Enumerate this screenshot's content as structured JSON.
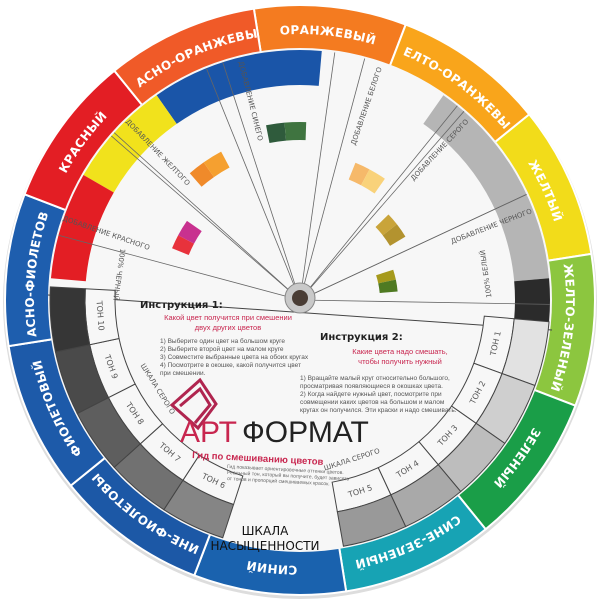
{
  "ring": [
    {
      "label": "ОРАНЖЕВЫЙ",
      "color": "#f47b20"
    },
    {
      "label": "ЖЕЛТО-ОРАНЖЕВЫЙ",
      "color": "#f9a51b"
    },
    {
      "label": "ЖЕЛТЫЙ",
      "color": "#f2dc1a"
    },
    {
      "label": "ЖЕЛТО-ЗЕЛЕНЫЙ",
      "color": "#8cc63f"
    },
    {
      "label": "ЗЕЛЕНЫЙ",
      "color": "#1a9e48"
    },
    {
      "label": "СИНЕ-ЗЕЛЕНЫЙ",
      "color": "#17a3b4"
    },
    {
      "label": "СИНИЙ",
      "color": "#1a62ae"
    },
    {
      "label": "СИНЕ-ФИОЛЕТОВЫЙ",
      "color": "#1c58a6"
    },
    {
      "label": "ФИОЛЕТОВЫЙ",
      "color": "#1d5aa9"
    },
    {
      "label": "КРАСНО-ФИОЛЕТОВЫЙ",
      "color": "#1e5eae"
    },
    {
      "label": "КРАСНЫЙ",
      "color": "#e31e24"
    },
    {
      "label": "КРАСНО-ОРАНЖЕВЫЙ",
      "color": "#f05a28"
    }
  ],
  "additions": [
    {
      "label": "ДОБАВЛЕНИЕ КРАСНОГО",
      "chips": [
        "#e8323c",
        "#c8318f"
      ]
    },
    {
      "label": "ДОБАВЛЕНИЕ ЖЕЛТОГО",
      "chips": [
        "#f08a2a",
        "#f5a030"
      ]
    },
    {
      "label": "ДОБАВЛЕНИЕ СИНЕГО",
      "chips": [
        "#2f5b3c",
        "#3f7440"
      ]
    },
    {
      "label": "ДОБАВЛЕНИЕ БЕЛОГО",
      "chips": [
        "#f6b96a",
        "#f9d27a"
      ]
    },
    {
      "label": "ДОБАВЛЕНИЕ СЕРОГО",
      "chips": [
        "#c9a43a",
        "#b3932f"
      ]
    },
    {
      "label": "ДОБАВЛЕНИЕ ЧЕРНОГО",
      "chips": [
        "#a69a1c",
        "#4f7a22"
      ]
    }
  ],
  "tones": {
    "right": [
      "ТОН 1",
      "ТОН 2",
      "ТОН 3",
      "ТОН 4",
      "ТОН 5"
    ],
    "left": [
      "ТОН 6",
      "ТОН 7",
      "ТОН 8",
      "ТОН 9",
      "ТОН 10"
    ],
    "white_label": "100% БЕЛЫЙ",
    "black_label": "100% ЧЕРНЫЙ",
    "gray_scale": "ШКАЛА СЕРОГО",
    "colors": [
      "#e2e2e2",
      "#cfcfcf",
      "#bdbdbd",
      "#a9a9a9",
      "#999999",
      "#858585",
      "#717171",
      "#5e5e5e",
      "#4a4a4a",
      "#363636"
    ]
  },
  "instruction1": {
    "title": "Инструкция 1:",
    "subtitle": [
      "Какой цвет получится при смешении",
      "двух других цветов"
    ],
    "steps": [
      "1) Выберите один цвет на большом круге",
      "2) Выберите второй цвет на малом круге",
      "3) Совместите выбранные цвета на обоих кругах",
      "4) Посмотрите в окошке, какой получится цвет",
      "при смешении."
    ]
  },
  "instruction2": {
    "title": "Инструкция 2:",
    "subtitle": [
      "Какие цвета надо смешать,",
      "чтобы получить нужный"
    ],
    "steps": [
      "1) Вращайте малый круг относительно большого,",
      "просматривая появляющиеся в окошках цвета.",
      "2) Когда найдете нужный цвет, посмотрите при",
      "совмещении каких цветов на большом и малом",
      "кругах он получился. Эти краски и надо смешивать."
    ]
  },
  "brand": {
    "name_a": "АРТ",
    "name_b": "ФОРМАТ",
    "tagline": "Гид по смешиванию цветов",
    "note": [
      "Гид показывает ориентировочные оттенки цветов.",
      "Реальный тон, который вы получите, будет зависеть",
      "от тонов и пропорций смешиваемых красок."
    ]
  },
  "saturation_label": [
    "ШКАЛА",
    "НАСЫЩЕННОСТИ"
  ]
}
